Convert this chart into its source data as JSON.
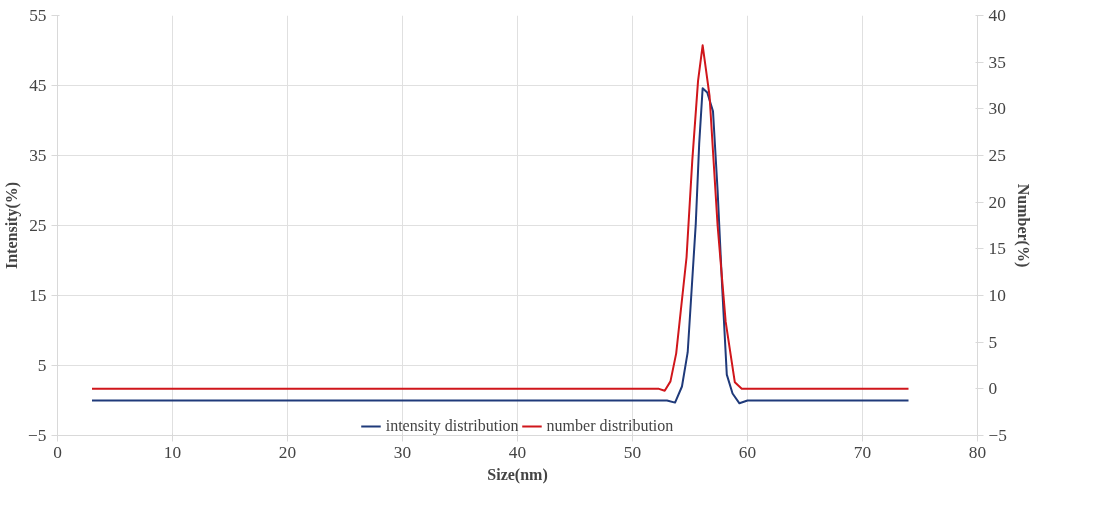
{
  "chart_data": {
    "type": "line",
    "xlabel": "Size(nm)",
    "ylabel": "Intensity(%)",
    "y2label": "Number(%)",
    "xlim": [
      0,
      80
    ],
    "xticks": [
      0,
      10,
      20,
      30,
      40,
      50,
      60,
      70,
      80
    ],
    "ylim": [
      -5,
      55
    ],
    "yticks": [
      -5,
      5,
      15,
      25,
      35,
      45,
      55
    ],
    "y2lim": [
      -5,
      40
    ],
    "y2ticks": [
      -5,
      0,
      5,
      10,
      15,
      20,
      25,
      30,
      35,
      40
    ],
    "grid": true,
    "legend": "bottom",
    "marker": "none",
    "line_style": "solid",
    "series": [
      {
        "name": "intensity distribution",
        "color": "#1f3a7a",
        "x": [
          3,
          53,
          53.7,
          54.3,
          54.8,
          55.5,
          55.8,
          56.1,
          56.5,
          57.0,
          57.4,
          57.8,
          58.2,
          58.7,
          59.3,
          60,
          74
        ],
        "values": [
          0,
          0,
          -0.3,
          2,
          6.9,
          25.2,
          36.7,
          44.6,
          44,
          41.3,
          30,
          16.1,
          3.7,
          1,
          -0.4,
          0,
          0
        ]
      },
      {
        "name": "number distribution",
        "color": "#d0161b",
        "axis": "y2",
        "x": [
          3,
          52.3,
          52.8,
          53.3,
          53.8,
          54.7,
          55.2,
          55.7,
          56.1,
          56.7,
          57.4,
          58.1,
          58.9,
          59.5,
          60,
          74
        ],
        "values": [
          0,
          0,
          -0.2,
          0.8,
          3.8,
          14.1,
          24.5,
          33,
          36.8,
          31.4,
          17.5,
          7.2,
          0.7,
          0,
          0,
          0
        ]
      }
    ]
  }
}
